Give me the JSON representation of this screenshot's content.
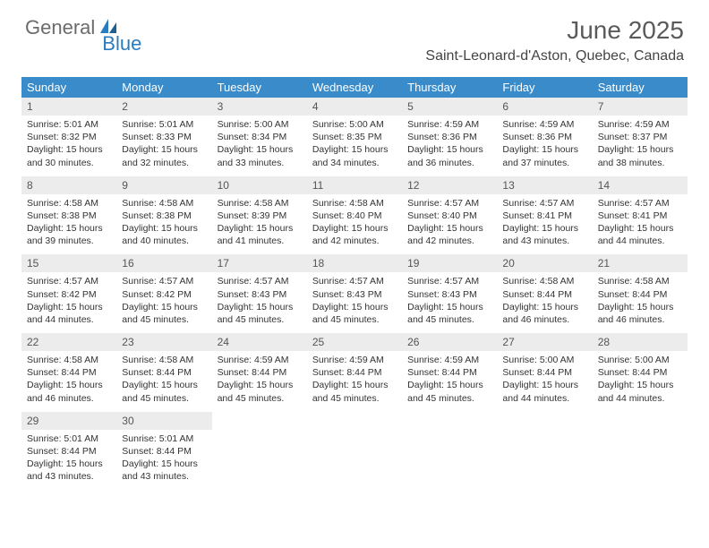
{
  "branding": {
    "word1": "General",
    "word2": "Blue",
    "word1_color": "#6b6b6b",
    "word2_color": "#2b7bbf",
    "icon_color": "#2b7bbf"
  },
  "header": {
    "title": "June 2025",
    "location": "Saint-Leonard-d'Aston, Quebec, Canada",
    "title_color": "#5a5a5a",
    "title_fontsize": 28,
    "location_fontsize": 16
  },
  "calendar": {
    "header_bg": "#3a8bc9",
    "header_fg": "#ffffff",
    "daynum_bg": "#ececec",
    "daynum_fg": "#555555",
    "body_fg": "#333333",
    "rule_color": "#3a8bc9",
    "cell_fontsize": 10.5,
    "columns": [
      "Sunday",
      "Monday",
      "Tuesday",
      "Wednesday",
      "Thursday",
      "Friday",
      "Saturday"
    ],
    "weeks": [
      [
        {
          "day": "1",
          "sunrise": "Sunrise: 5:01 AM",
          "sunset": "Sunset: 8:32 PM",
          "daylight": "Daylight: 15 hours and 30 minutes."
        },
        {
          "day": "2",
          "sunrise": "Sunrise: 5:01 AM",
          "sunset": "Sunset: 8:33 PM",
          "daylight": "Daylight: 15 hours and 32 minutes."
        },
        {
          "day": "3",
          "sunrise": "Sunrise: 5:00 AM",
          "sunset": "Sunset: 8:34 PM",
          "daylight": "Daylight: 15 hours and 33 minutes."
        },
        {
          "day": "4",
          "sunrise": "Sunrise: 5:00 AM",
          "sunset": "Sunset: 8:35 PM",
          "daylight": "Daylight: 15 hours and 34 minutes."
        },
        {
          "day": "5",
          "sunrise": "Sunrise: 4:59 AM",
          "sunset": "Sunset: 8:36 PM",
          "daylight": "Daylight: 15 hours and 36 minutes."
        },
        {
          "day": "6",
          "sunrise": "Sunrise: 4:59 AM",
          "sunset": "Sunset: 8:36 PM",
          "daylight": "Daylight: 15 hours and 37 minutes."
        },
        {
          "day": "7",
          "sunrise": "Sunrise: 4:59 AM",
          "sunset": "Sunset: 8:37 PM",
          "daylight": "Daylight: 15 hours and 38 minutes."
        }
      ],
      [
        {
          "day": "8",
          "sunrise": "Sunrise: 4:58 AM",
          "sunset": "Sunset: 8:38 PM",
          "daylight": "Daylight: 15 hours and 39 minutes."
        },
        {
          "day": "9",
          "sunrise": "Sunrise: 4:58 AM",
          "sunset": "Sunset: 8:38 PM",
          "daylight": "Daylight: 15 hours and 40 minutes."
        },
        {
          "day": "10",
          "sunrise": "Sunrise: 4:58 AM",
          "sunset": "Sunset: 8:39 PM",
          "daylight": "Daylight: 15 hours and 41 minutes."
        },
        {
          "day": "11",
          "sunrise": "Sunrise: 4:58 AM",
          "sunset": "Sunset: 8:40 PM",
          "daylight": "Daylight: 15 hours and 42 minutes."
        },
        {
          "day": "12",
          "sunrise": "Sunrise: 4:57 AM",
          "sunset": "Sunset: 8:40 PM",
          "daylight": "Daylight: 15 hours and 42 minutes."
        },
        {
          "day": "13",
          "sunrise": "Sunrise: 4:57 AM",
          "sunset": "Sunset: 8:41 PM",
          "daylight": "Daylight: 15 hours and 43 minutes."
        },
        {
          "day": "14",
          "sunrise": "Sunrise: 4:57 AM",
          "sunset": "Sunset: 8:41 PM",
          "daylight": "Daylight: 15 hours and 44 minutes."
        }
      ],
      [
        {
          "day": "15",
          "sunrise": "Sunrise: 4:57 AM",
          "sunset": "Sunset: 8:42 PM",
          "daylight": "Daylight: 15 hours and 44 minutes."
        },
        {
          "day": "16",
          "sunrise": "Sunrise: 4:57 AM",
          "sunset": "Sunset: 8:42 PM",
          "daylight": "Daylight: 15 hours and 45 minutes."
        },
        {
          "day": "17",
          "sunrise": "Sunrise: 4:57 AM",
          "sunset": "Sunset: 8:43 PM",
          "daylight": "Daylight: 15 hours and 45 minutes."
        },
        {
          "day": "18",
          "sunrise": "Sunrise: 4:57 AM",
          "sunset": "Sunset: 8:43 PM",
          "daylight": "Daylight: 15 hours and 45 minutes."
        },
        {
          "day": "19",
          "sunrise": "Sunrise: 4:57 AM",
          "sunset": "Sunset: 8:43 PM",
          "daylight": "Daylight: 15 hours and 45 minutes."
        },
        {
          "day": "20",
          "sunrise": "Sunrise: 4:58 AM",
          "sunset": "Sunset: 8:44 PM",
          "daylight": "Daylight: 15 hours and 46 minutes."
        },
        {
          "day": "21",
          "sunrise": "Sunrise: 4:58 AM",
          "sunset": "Sunset: 8:44 PM",
          "daylight": "Daylight: 15 hours and 46 minutes."
        }
      ],
      [
        {
          "day": "22",
          "sunrise": "Sunrise: 4:58 AM",
          "sunset": "Sunset: 8:44 PM",
          "daylight": "Daylight: 15 hours and 46 minutes."
        },
        {
          "day": "23",
          "sunrise": "Sunrise: 4:58 AM",
          "sunset": "Sunset: 8:44 PM",
          "daylight": "Daylight: 15 hours and 45 minutes."
        },
        {
          "day": "24",
          "sunrise": "Sunrise: 4:59 AM",
          "sunset": "Sunset: 8:44 PM",
          "daylight": "Daylight: 15 hours and 45 minutes."
        },
        {
          "day": "25",
          "sunrise": "Sunrise: 4:59 AM",
          "sunset": "Sunset: 8:44 PM",
          "daylight": "Daylight: 15 hours and 45 minutes."
        },
        {
          "day": "26",
          "sunrise": "Sunrise: 4:59 AM",
          "sunset": "Sunset: 8:44 PM",
          "daylight": "Daylight: 15 hours and 45 minutes."
        },
        {
          "day": "27",
          "sunrise": "Sunrise: 5:00 AM",
          "sunset": "Sunset: 8:44 PM",
          "daylight": "Daylight: 15 hours and 44 minutes."
        },
        {
          "day": "28",
          "sunrise": "Sunrise: 5:00 AM",
          "sunset": "Sunset: 8:44 PM",
          "daylight": "Daylight: 15 hours and 44 minutes."
        }
      ],
      [
        {
          "day": "29",
          "sunrise": "Sunrise: 5:01 AM",
          "sunset": "Sunset: 8:44 PM",
          "daylight": "Daylight: 15 hours and 43 minutes."
        },
        {
          "day": "30",
          "sunrise": "Sunrise: 5:01 AM",
          "sunset": "Sunset: 8:44 PM",
          "daylight": "Daylight: 15 hours and 43 minutes."
        },
        {
          "empty": true
        },
        {
          "empty": true
        },
        {
          "empty": true
        },
        {
          "empty": true
        },
        {
          "empty": true
        }
      ]
    ]
  }
}
